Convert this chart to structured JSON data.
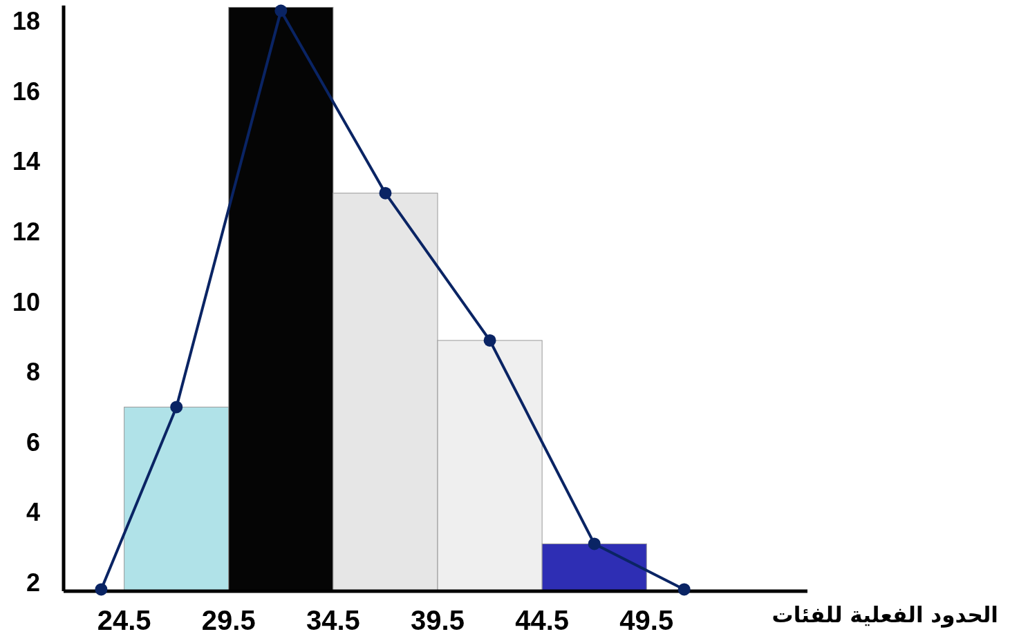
{
  "chart_data": {
    "type": "histogram",
    "xlabel": "الحدود الفعلية للفئات",
    "bins": [
      24.5,
      29.5,
      34.5,
      39.5,
      44.5,
      49.5
    ],
    "values": [
      7,
      18.4,
      13.1,
      8.9,
      3.1
    ],
    "colors": [
      "#b0e2e8",
      "#050505",
      "#e6e6e6",
      "#efefef",
      "#2e2eb4"
    ],
    "series": [
      {
        "type": "line",
        "color": "#0a2464",
        "x": [
          23.4,
          27,
          32,
          37,
          42,
          47,
          51.3
        ],
        "values": [
          1.8,
          7,
          18.3,
          13.1,
          8.9,
          3.1,
          1.8
        ]
      }
    ],
    "marker": "circle",
    "line_style": "solid",
    "xlim": [
      21.6,
      57.2
    ],
    "ylim": [
      1.75,
      18.45
    ],
    "xticks": [
      24.5,
      29.5,
      34.5,
      39.5,
      44.5,
      49.5
    ],
    "yticks": [
      2,
      4,
      6,
      8,
      10,
      12,
      14,
      16,
      18
    ]
  }
}
